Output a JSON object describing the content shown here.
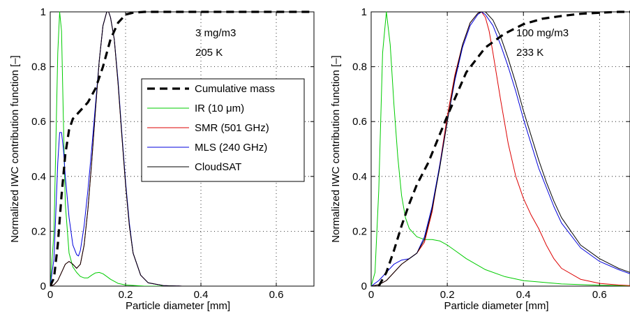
{
  "chart_data": [
    {
      "type": "line",
      "xlabel": "Particle diameter [mm]",
      "ylabel": "Normalized IWC contribution function [–]",
      "xlim": [
        0,
        0.7
      ],
      "ylim": [
        0,
        1
      ],
      "xticks": [
        "0",
        "0.2",
        "0.4",
        "0.6"
      ],
      "yticks": [
        "0",
        "0.2",
        "0.4",
        "0.6",
        "0.8",
        "1"
      ],
      "grid": true,
      "annotations": [
        "3 mg/m3",
        "205 K"
      ],
      "legend": {
        "placement": "center-right",
        "entries": [
          "Cumulative mass",
          "IR (10 μm)",
          "SMR (501 GHz)",
          "MLS (240 GHz)",
          "CloudSAT"
        ]
      },
      "series": [
        {
          "name": "Cumulative mass",
          "color": "#000000",
          "style": "dashed",
          "x": [
            0,
            0.01,
            0.02,
            0.03,
            0.04,
            0.05,
            0.06,
            0.08,
            0.1,
            0.12,
            0.14,
            0.16,
            0.18,
            0.2,
            0.22,
            0.25,
            0.3,
            0.4,
            0.5,
            0.6,
            0.7
          ],
          "y": [
            0,
            0.03,
            0.15,
            0.33,
            0.48,
            0.57,
            0.61,
            0.64,
            0.67,
            0.72,
            0.8,
            0.9,
            0.96,
            0.99,
            0.997,
            1,
            1,
            1,
            1,
            1,
            1
          ]
        },
        {
          "name": "IR (10 μm)",
          "color": "#00cc00",
          "style": "solid",
          "x": [
            0,
            0.01,
            0.02,
            0.025,
            0.03,
            0.035,
            0.04,
            0.05,
            0.06,
            0.07,
            0.08,
            0.09,
            0.1,
            0.11,
            0.12,
            0.13,
            0.14,
            0.15,
            0.16,
            0.18,
            0.2,
            0.25,
            0.3,
            0.7
          ],
          "y": [
            0,
            0.2,
            0.85,
            1.0,
            0.93,
            0.6,
            0.3,
            0.12,
            0.07,
            0.05,
            0.035,
            0.03,
            0.03,
            0.04,
            0.048,
            0.05,
            0.045,
            0.035,
            0.025,
            0.01,
            0.004,
            0,
            0,
            0
          ]
        },
        {
          "name": "SMR (501 GHz)",
          "color": "#dd0000",
          "style": "solid",
          "x": [
            0,
            0.01,
            0.02,
            0.03,
            0.04,
            0.05,
            0.06,
            0.07,
            0.08,
            0.09,
            0.1,
            0.11,
            0.12,
            0.13,
            0.14,
            0.15,
            0.155,
            0.16,
            0.17,
            0.18,
            0.19,
            0.2,
            0.21,
            0.22,
            0.24,
            0.26,
            0.3,
            0.35,
            0.4,
            0.7
          ],
          "y": [
            0,
            0.005,
            0.02,
            0.05,
            0.08,
            0.09,
            0.08,
            0.065,
            0.08,
            0.15,
            0.28,
            0.45,
            0.64,
            0.82,
            0.95,
            1.0,
            1.0,
            0.98,
            0.9,
            0.74,
            0.55,
            0.37,
            0.22,
            0.12,
            0.04,
            0.012,
            0.002,
            0,
            0,
            0
          ]
        },
        {
          "name": "MLS (240 GHz)",
          "color": "#0000dd",
          "style": "solid",
          "x": [
            0,
            0.01,
            0.02,
            0.025,
            0.03,
            0.035,
            0.04,
            0.05,
            0.06,
            0.07,
            0.075,
            0.08,
            0.09,
            0.1,
            0.11,
            0.12,
            0.13,
            0.14,
            0.15,
            0.155,
            0.16,
            0.17,
            0.18,
            0.19,
            0.2,
            0.21,
            0.22,
            0.24,
            0.26,
            0.3,
            0.35,
            0.4,
            0.7
          ],
          "y": [
            0,
            0.1,
            0.45,
            0.56,
            0.56,
            0.5,
            0.4,
            0.25,
            0.15,
            0.115,
            0.11,
            0.13,
            0.22,
            0.35,
            0.5,
            0.66,
            0.82,
            0.95,
            1.0,
            1.0,
            0.98,
            0.9,
            0.75,
            0.56,
            0.38,
            0.23,
            0.12,
            0.04,
            0.012,
            0.002,
            0,
            0,
            0
          ]
        },
        {
          "name": "CloudSAT",
          "color": "#000000",
          "style": "solid",
          "x": [
            0,
            0.01,
            0.02,
            0.03,
            0.04,
            0.05,
            0.06,
            0.07,
            0.08,
            0.09,
            0.1,
            0.11,
            0.12,
            0.13,
            0.14,
            0.15,
            0.155,
            0.16,
            0.17,
            0.18,
            0.19,
            0.2,
            0.21,
            0.22,
            0.24,
            0.26,
            0.3,
            0.35,
            0.4,
            0.7
          ],
          "y": [
            0,
            0.005,
            0.02,
            0.05,
            0.08,
            0.09,
            0.08,
            0.065,
            0.08,
            0.15,
            0.28,
            0.45,
            0.64,
            0.82,
            0.95,
            1.0,
            1.0,
            0.98,
            0.9,
            0.74,
            0.55,
            0.37,
            0.22,
            0.12,
            0.04,
            0.012,
            0.002,
            0,
            0,
            0
          ]
        }
      ]
    },
    {
      "type": "line",
      "xlabel": "Particle diameter [mm]",
      "ylabel": "Normalized IWC contribution function [–]",
      "xlim": [
        0,
        0.68
      ],
      "ylim": [
        0,
        1
      ],
      "xticks": [
        "0",
        "0.2",
        "0.4",
        "0.6"
      ],
      "yticks": [
        "0",
        "0.2",
        "0.4",
        "0.6",
        "0.8",
        "1"
      ],
      "grid": true,
      "annotations": [
        "100 mg/m3",
        "233 K"
      ],
      "series": [
        {
          "name": "Cumulative mass",
          "color": "#000000",
          "style": "dashed",
          "x": [
            0.02,
            0.04,
            0.06,
            0.08,
            0.1,
            0.12,
            0.15,
            0.2,
            0.25,
            0.3,
            0.35,
            0.4,
            0.45,
            0.5,
            0.55,
            0.6,
            0.65,
            0.68
          ],
          "y": [
            0,
            0.05,
            0.13,
            0.22,
            0.3,
            0.37,
            0.45,
            0.62,
            0.78,
            0.87,
            0.92,
            0.955,
            0.975,
            0.985,
            0.993,
            0.997,
            1,
            1
          ]
        },
        {
          "name": "IR (10 μm)",
          "color": "#00cc00",
          "style": "solid",
          "x": [
            0,
            0.01,
            0.02,
            0.03,
            0.04,
            0.05,
            0.06,
            0.07,
            0.08,
            0.09,
            0.1,
            0.12,
            0.14,
            0.16,
            0.18,
            0.2,
            0.22,
            0.25,
            0.3,
            0.35,
            0.4,
            0.5,
            0.6,
            0.68
          ],
          "y": [
            0,
            0.05,
            0.35,
            0.85,
            1.0,
            0.88,
            0.66,
            0.47,
            0.33,
            0.25,
            0.21,
            0.18,
            0.17,
            0.17,
            0.165,
            0.15,
            0.13,
            0.1,
            0.06,
            0.035,
            0.02,
            0.008,
            0.003,
            0.001
          ]
        },
        {
          "name": "SMR (501 GHz)",
          "color": "#dd0000",
          "style": "solid",
          "x": [
            0,
            0.02,
            0.04,
            0.06,
            0.08,
            0.1,
            0.12,
            0.14,
            0.16,
            0.18,
            0.2,
            0.22,
            0.24,
            0.26,
            0.28,
            0.29,
            0.3,
            0.31,
            0.32,
            0.34,
            0.36,
            0.38,
            0.4,
            0.42,
            0.44,
            0.46,
            0.48,
            0.5,
            0.55,
            0.6,
            0.65,
            0.68
          ],
          "y": [
            0,
            0.005,
            0.02,
            0.05,
            0.08,
            0.1,
            0.12,
            0.16,
            0.27,
            0.44,
            0.62,
            0.77,
            0.88,
            0.96,
            0.995,
            1.0,
            0.98,
            0.93,
            0.85,
            0.68,
            0.52,
            0.4,
            0.32,
            0.26,
            0.21,
            0.15,
            0.1,
            0.065,
            0.025,
            0.01,
            0.004,
            0.002
          ]
        },
        {
          "name": "MLS (240 GHz)",
          "color": "#0000dd",
          "style": "solid",
          "x": [
            0,
            0.02,
            0.04,
            0.06,
            0.08,
            0.1,
            0.12,
            0.14,
            0.16,
            0.18,
            0.2,
            0.22,
            0.24,
            0.26,
            0.28,
            0.29,
            0.3,
            0.32,
            0.34,
            0.36,
            0.38,
            0.4,
            0.42,
            0.44,
            0.46,
            0.48,
            0.5,
            0.55,
            0.6,
            0.65,
            0.68
          ],
          "y": [
            0,
            0.02,
            0.05,
            0.08,
            0.095,
            0.1,
            0.12,
            0.18,
            0.29,
            0.44,
            0.6,
            0.75,
            0.87,
            0.95,
            0.99,
            1.0,
            0.99,
            0.95,
            0.88,
            0.8,
            0.71,
            0.61,
            0.52,
            0.43,
            0.36,
            0.29,
            0.23,
            0.14,
            0.09,
            0.06,
            0.045
          ]
        },
        {
          "name": "CloudSAT",
          "color": "#000000",
          "style": "solid",
          "x": [
            0,
            0.02,
            0.04,
            0.06,
            0.08,
            0.1,
            0.12,
            0.14,
            0.16,
            0.18,
            0.2,
            0.22,
            0.24,
            0.26,
            0.28,
            0.29,
            0.3,
            0.32,
            0.34,
            0.36,
            0.38,
            0.4,
            0.42,
            0.44,
            0.46,
            0.48,
            0.5,
            0.55,
            0.6,
            0.65,
            0.68
          ],
          "y": [
            0,
            0.005,
            0.02,
            0.05,
            0.08,
            0.1,
            0.12,
            0.17,
            0.28,
            0.43,
            0.6,
            0.76,
            0.88,
            0.96,
            0.995,
            1.0,
            1.0,
            0.97,
            0.91,
            0.83,
            0.74,
            0.64,
            0.55,
            0.46,
            0.38,
            0.31,
            0.25,
            0.15,
            0.1,
            0.065,
            0.05
          ]
        }
      ]
    }
  ]
}
